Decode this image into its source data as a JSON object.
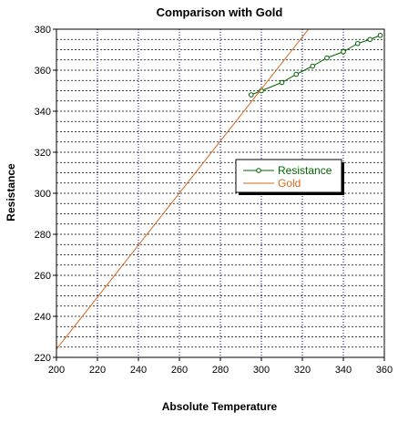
{
  "chart_data": {
    "type": "line",
    "title": "Comparison with Gold",
    "xlabel": "Absolute Temperature",
    "ylabel": "Resistance",
    "xlim": [
      200,
      360
    ],
    "ylim": [
      220,
      380
    ],
    "x_ticks": [
      200,
      220,
      240,
      260,
      280,
      300,
      320,
      340,
      360
    ],
    "y_ticks": [
      220,
      240,
      260,
      280,
      300,
      320,
      340,
      360,
      380
    ],
    "grid": true,
    "legend_position": "center-right",
    "series": [
      {
        "name": "Resistance",
        "color": "#006400",
        "marker": "circle",
        "points": [
          {
            "x": 295,
            "y": 348
          },
          {
            "x": 300,
            "y": 350
          },
          {
            "x": 310,
            "y": 354
          },
          {
            "x": 317,
            "y": 358
          },
          {
            "x": 325,
            "y": 362
          },
          {
            "x": 332,
            "y": 366
          },
          {
            "x": 340,
            "y": 369
          },
          {
            "x": 347,
            "y": 373
          },
          {
            "x": 353,
            "y": 375
          },
          {
            "x": 358,
            "y": 377
          }
        ]
      },
      {
        "name": "Gold",
        "color": "#d2691e",
        "marker": "none",
        "points": [
          {
            "x": 200,
            "y": 224
          },
          {
            "x": 323,
            "y": 380
          }
        ]
      }
    ]
  }
}
